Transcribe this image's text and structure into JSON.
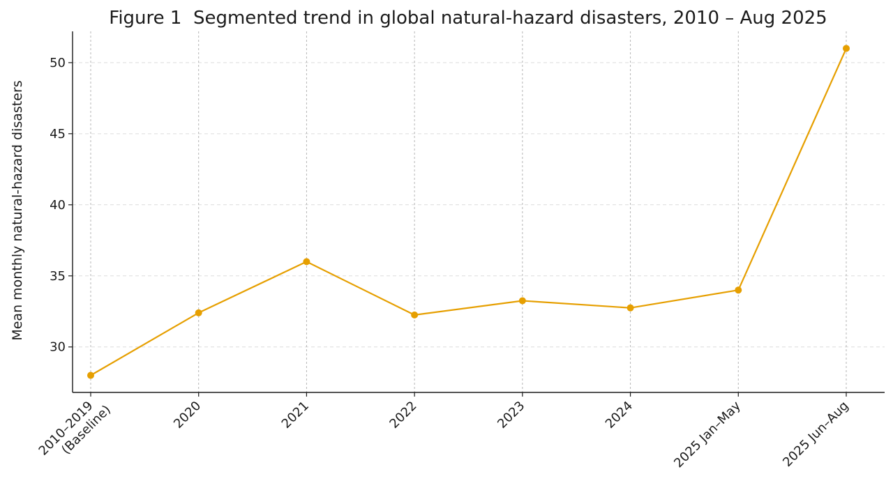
{
  "chart_data": {
    "type": "line",
    "title": "Figure 1  Segmented trend in global natural-hazard disasters, 2010 – Aug 2025",
    "xlabel": "",
    "ylabel": "Mean monthly natural-hazard disasters",
    "categories": [
      [
        "2010–2019",
        "(Baseline)"
      ],
      [
        "2020"
      ],
      [
        "2021"
      ],
      [
        "2022"
      ],
      [
        "2023"
      ],
      [
        "2024"
      ],
      [
        "2025 Jan–May"
      ],
      [
        "2025 Jun–Aug"
      ]
    ],
    "series": [
      {
        "values": [
          28.0,
          32.4,
          36.0,
          32.25,
          33.25,
          32.75,
          34.0,
          51.0
        ],
        "color": "#E69F00"
      }
    ],
    "ylim": [
      26.8,
      52.2
    ],
    "yticks": [
      30,
      35,
      40,
      45,
      50
    ],
    "grid": true,
    "legend": "none"
  }
}
